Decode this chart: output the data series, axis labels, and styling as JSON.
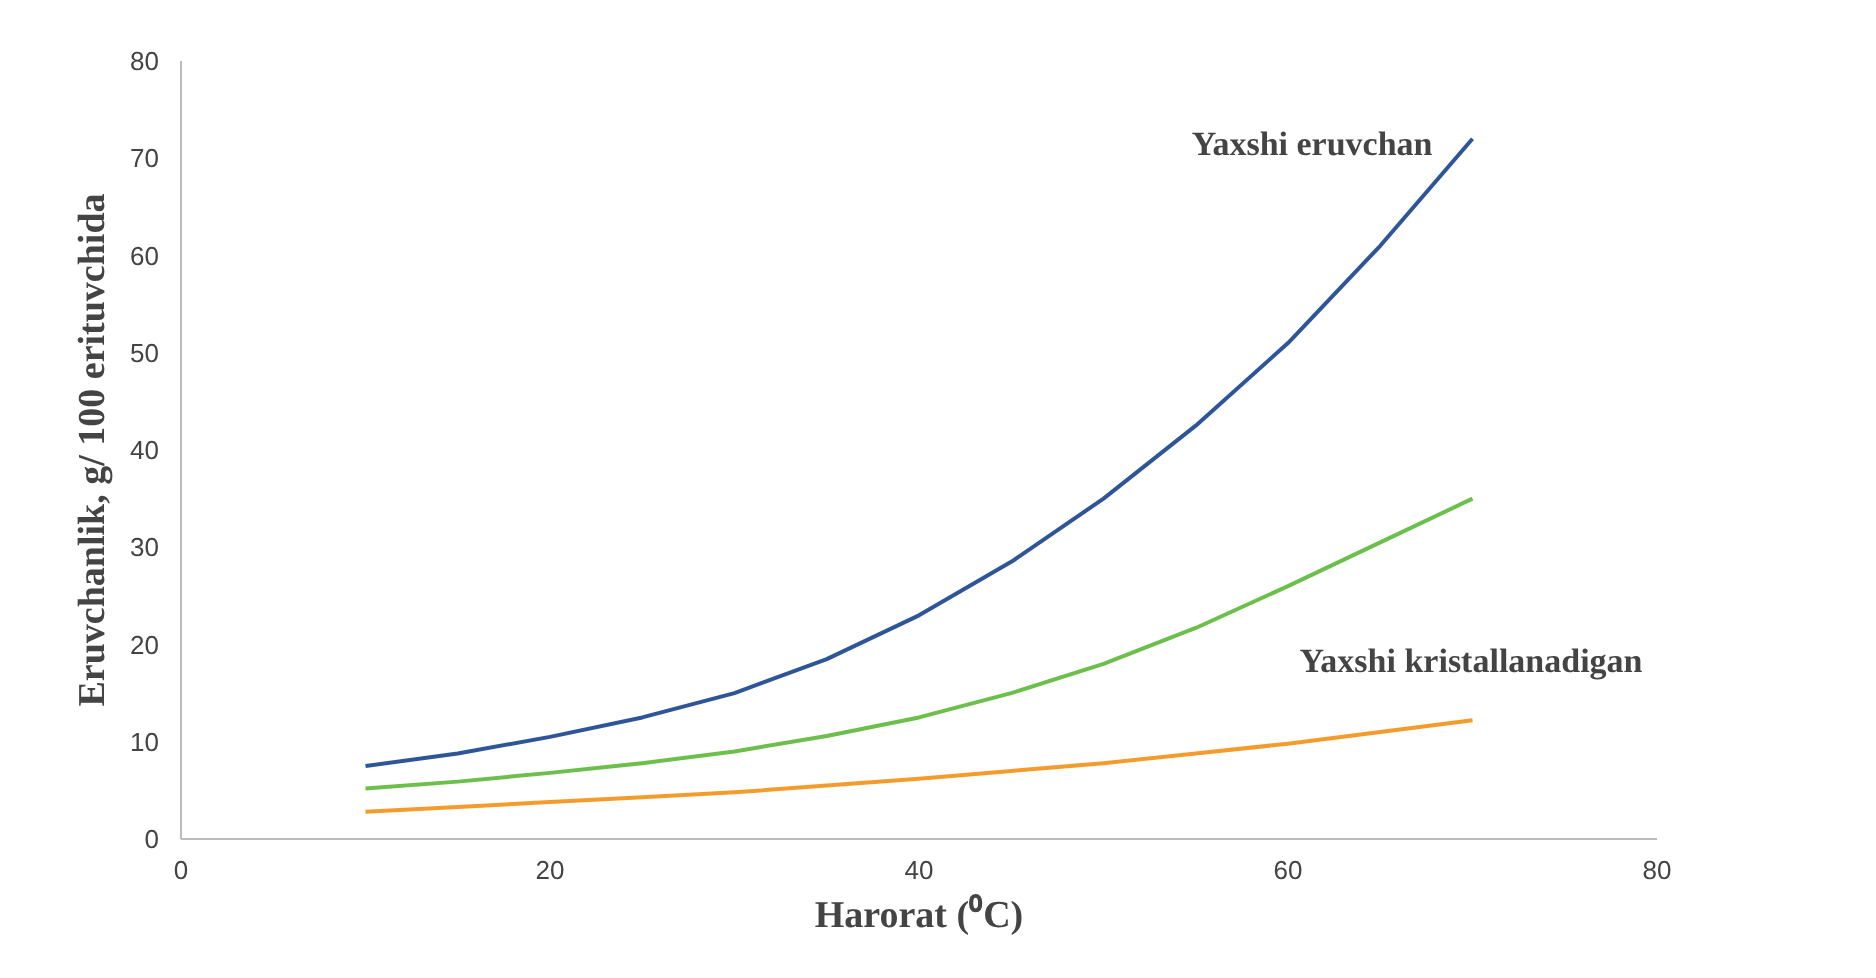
{
  "chart_data": {
    "type": "line",
    "xlabel": "Harorat (⁰C)",
    "ylabel": "Eruvchanlik, g/ 100 erituvchida",
    "x": [
      10,
      15,
      20,
      25,
      30,
      35,
      40,
      45,
      50,
      55,
      60,
      65,
      70
    ],
    "series": [
      {
        "name": "Yaxshi eruvchan",
        "color": "#2e5597",
        "values": [
          7.5,
          8.8,
          10.5,
          12.5,
          15,
          18.5,
          23,
          28.5,
          35,
          42.5,
          51,
          61,
          72
        ]
      },
      {
        "color": "#6cbf4a",
        "values": [
          5.2,
          5.9,
          6.8,
          7.8,
          9,
          10.6,
          12.5,
          15,
          18,
          21.7,
          26,
          30.5,
          35
        ]
      },
      {
        "name": "Yaxshi kristallanadigan",
        "color": "#f39c2c",
        "values": [
          2.8,
          3.3,
          3.8,
          4.3,
          4.8,
          5.5,
          6.2,
          7,
          7.8,
          8.8,
          9.8,
          11,
          12.2
        ]
      }
    ],
    "xlim": [
      0,
      80
    ],
    "ylim": [
      0,
      80
    ],
    "xticks": [
      0,
      20,
      40,
      60,
      80
    ],
    "yticks": [
      0,
      10,
      20,
      30,
      40,
      50,
      60,
      70,
      80
    ],
    "grid": false,
    "legend": false,
    "marker": "none",
    "line_style": "solid"
  }
}
